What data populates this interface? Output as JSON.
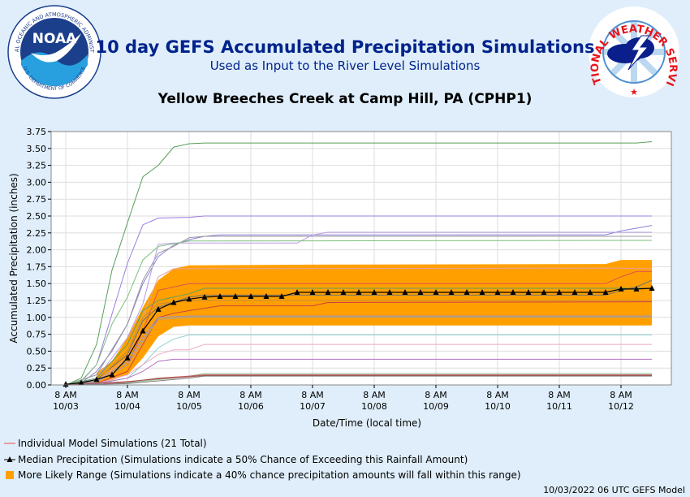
{
  "header": {
    "title": "10 day GEFS Accumulated Precipitation Simulations",
    "subtitle": "Used as Input to the River Level Simulations",
    "noaa_text": "NOAA",
    "noaa_ring_text": "NATIONAL OCEANIC AND ATMOSPHERIC ADMINISTRATION",
    "noaa_ring_text_bottom": "U.S. DEPARTMENT OF COMMERCE",
    "nws_ring_text": "NATIONAL WEATHER SERVICE"
  },
  "footer": "10/03/2022 06 UTC GEFS Model",
  "colors": {
    "band": "#ffa000",
    "median": "#000000",
    "title": "#00238c",
    "background": "#dfeefa"
  },
  "chart_data": {
    "type": "line",
    "title": "Yellow Breeches Creek at Camp Hill, PA (CPHP1)",
    "xlabel": "Date/Time (local time)",
    "ylabel": "Accumulated Precipitation (inches)",
    "ylim": [
      0,
      3.75
    ],
    "xlim_hours": [
      0,
      228
    ],
    "yticks": [
      "0.00",
      "0.25",
      "0.50",
      "0.75",
      "1.00",
      "1.25",
      "1.50",
      "1.75",
      "2.00",
      "2.25",
      "2.50",
      "2.75",
      "3.00",
      "3.25",
      "3.50",
      "3.75"
    ],
    "xticks": [
      {
        "line1": "8 AM",
        "line2": "10/03",
        "hour": 0
      },
      {
        "line1": "8 AM",
        "line2": "10/04",
        "hour": 24
      },
      {
        "line1": "8 AM",
        "line2": "10/05",
        "hour": 48
      },
      {
        "line1": "8 AM",
        "line2": "10/06",
        "hour": 72
      },
      {
        "line1": "8 AM",
        "line2": "10/07",
        "hour": 96
      },
      {
        "line1": "8 AM",
        "line2": "10/08",
        "hour": 120
      },
      {
        "line1": "8 AM",
        "line2": "10/09",
        "hour": 144
      },
      {
        "line1": "8 AM",
        "line2": "10/10",
        "hour": 168
      },
      {
        "line1": "8 AM",
        "line2": "10/11",
        "hour": 192
      },
      {
        "line1": "8 AM",
        "line2": "10/12",
        "hour": 216
      }
    ],
    "grid": true,
    "legend": [
      {
        "key": "members",
        "label": "Individual Model Simulations (21 Total)"
      },
      {
        "key": "median",
        "label": "Median Precipitation (Simulations indicate a 50% Chance of Exceeding this Rainfall Amount)"
      },
      {
        "key": "band",
        "label": "More Likely Range (Simulations indicate a 40% chance precipitation amounts will fall within this range)"
      }
    ],
    "median": [
      [
        0,
        0.01
      ],
      [
        6,
        0.03
      ],
      [
        12,
        0.08
      ],
      [
        18,
        0.15
      ],
      [
        24,
        0.4
      ],
      [
        30,
        0.8
      ],
      [
        36,
        1.12
      ],
      [
        42,
        1.22
      ],
      [
        48,
        1.27
      ],
      [
        54,
        1.3
      ],
      [
        60,
        1.31
      ],
      [
        66,
        1.31
      ],
      [
        72,
        1.31
      ],
      [
        78,
        1.31
      ],
      [
        84,
        1.31
      ],
      [
        90,
        1.37
      ],
      [
        96,
        1.37
      ],
      [
        102,
        1.37
      ],
      [
        108,
        1.37
      ],
      [
        114,
        1.37
      ],
      [
        120,
        1.37
      ],
      [
        126,
        1.37
      ],
      [
        132,
        1.37
      ],
      [
        138,
        1.37
      ],
      [
        144,
        1.37
      ],
      [
        150,
        1.37
      ],
      [
        156,
        1.37
      ],
      [
        162,
        1.37
      ],
      [
        168,
        1.37
      ],
      [
        174,
        1.37
      ],
      [
        180,
        1.37
      ],
      [
        186,
        1.37
      ],
      [
        192,
        1.37
      ],
      [
        198,
        1.37
      ],
      [
        204,
        1.37
      ],
      [
        210,
        1.37
      ],
      [
        216,
        1.42
      ],
      [
        222,
        1.42
      ],
      [
        228,
        1.43
      ]
    ],
    "band_upper": [
      [
        12,
        0.18
      ],
      [
        18,
        0.35
      ],
      [
        24,
        0.7
      ],
      [
        30,
        1.15
      ],
      [
        36,
        1.55
      ],
      [
        42,
        1.72
      ],
      [
        48,
        1.77
      ],
      [
        96,
        1.78
      ],
      [
        210,
        1.79
      ],
      [
        216,
        1.85
      ],
      [
        228,
        1.85
      ]
    ],
    "band_lower": [
      [
        12,
        0.02
      ],
      [
        18,
        0.07
      ],
      [
        24,
        0.15
      ],
      [
        30,
        0.4
      ],
      [
        36,
        0.72
      ],
      [
        42,
        0.86
      ],
      [
        48,
        0.88
      ],
      [
        228,
        0.88
      ]
    ],
    "members": [
      {
        "color": "#5aa05a",
        "points": [
          [
            0,
            0
          ],
          [
            6,
            0.1
          ],
          [
            12,
            0.6
          ],
          [
            18,
            1.7
          ],
          [
            24,
            2.4
          ],
          [
            30,
            3.08
          ],
          [
            36,
            3.25
          ],
          [
            42,
            3.52
          ],
          [
            48,
            3.57
          ],
          [
            54,
            3.58
          ],
          [
            222,
            3.58
          ],
          [
            228,
            3.6
          ]
        ]
      },
      {
        "color": "#9b7de0",
        "points": [
          [
            0,
            0
          ],
          [
            6,
            0.05
          ],
          [
            12,
            0.3
          ],
          [
            18,
            1.05
          ],
          [
            24,
            1.8
          ],
          [
            30,
            2.37
          ],
          [
            36,
            2.47
          ],
          [
            48,
            2.48
          ],
          [
            54,
            2.5
          ],
          [
            228,
            2.5
          ]
        ]
      },
      {
        "color": "#8a7fd8",
        "points": [
          [
            0,
            0
          ],
          [
            6,
            0.03
          ],
          [
            12,
            0.2
          ],
          [
            18,
            0.5
          ],
          [
            24,
            0.9
          ],
          [
            30,
            1.5
          ],
          [
            36,
            1.9
          ],
          [
            42,
            2.07
          ],
          [
            48,
            2.15
          ],
          [
            54,
            2.2
          ],
          [
            60,
            2.22
          ],
          [
            210,
            2.22
          ],
          [
            216,
            2.28
          ],
          [
            222,
            2.32
          ],
          [
            228,
            2.36
          ]
        ]
      },
      {
        "color": "#999999",
        "points": [
          [
            0,
            0
          ],
          [
            12,
            0.15
          ],
          [
            24,
            0.9
          ],
          [
            30,
            1.55
          ],
          [
            36,
            1.95
          ],
          [
            42,
            2.05
          ],
          [
            48,
            2.18
          ],
          [
            54,
            2.2
          ],
          [
            228,
            2.2
          ]
        ]
      },
      {
        "color": "#b89be6",
        "points": [
          [
            0,
            0
          ],
          [
            12,
            0.1
          ],
          [
            24,
            0.7
          ],
          [
            30,
            1.2
          ],
          [
            36,
            2.08
          ],
          [
            42,
            2.1
          ],
          [
            72,
            2.1
          ],
          [
            84,
            2.1
          ],
          [
            90,
            2.1
          ],
          [
            96,
            2.22
          ],
          [
            102,
            2.26
          ],
          [
            228,
            2.26
          ]
        ]
      },
      {
        "color": "#7bbf7b",
        "points": [
          [
            0,
            0
          ],
          [
            6,
            0.06
          ],
          [
            12,
            0.3
          ],
          [
            18,
            0.9
          ],
          [
            24,
            1.3
          ],
          [
            30,
            1.85
          ],
          [
            36,
            2.05
          ],
          [
            48,
            2.13
          ],
          [
            228,
            2.14
          ]
        ]
      },
      {
        "color": "#e9a0a0",
        "points": [
          [
            0,
            0
          ],
          [
            12,
            0.05
          ],
          [
            24,
            0.4
          ],
          [
            30,
            1.0
          ],
          [
            36,
            1.6
          ],
          [
            42,
            1.72
          ],
          [
            216,
            1.73
          ],
          [
            222,
            1.72
          ],
          [
            228,
            1.72
          ]
        ]
      },
      {
        "color": "#e05050",
        "points": [
          [
            0,
            0
          ],
          [
            12,
            0.04
          ],
          [
            24,
            0.3
          ],
          [
            30,
            0.8
          ],
          [
            36,
            1.4
          ],
          [
            48,
            1.5
          ],
          [
            210,
            1.5
          ],
          [
            216,
            1.6
          ],
          [
            222,
            1.68
          ],
          [
            228,
            1.68
          ]
        ]
      },
      {
        "color": "#60a060",
        "points": [
          [
            0,
            0
          ],
          [
            12,
            0.1
          ],
          [
            24,
            0.6
          ],
          [
            30,
            1.1
          ],
          [
            36,
            1.25
          ],
          [
            48,
            1.35
          ],
          [
            54,
            1.43
          ],
          [
            228,
            1.43
          ]
        ]
      },
      {
        "color": "#707070",
        "points": [
          [
            0,
            0
          ],
          [
            12,
            0.08
          ],
          [
            24,
            0.45
          ],
          [
            30,
            0.95
          ],
          [
            36,
            1.15
          ],
          [
            48,
            1.3
          ],
          [
            54,
            1.33
          ],
          [
            210,
            1.33
          ],
          [
            216,
            1.4
          ],
          [
            222,
            1.45
          ],
          [
            228,
            1.55
          ]
        ]
      },
      {
        "color": "#c98a3a",
        "points": [
          [
            0,
            0
          ],
          [
            12,
            0.06
          ],
          [
            24,
            0.5
          ],
          [
            30,
            1.0
          ],
          [
            36,
            1.2
          ],
          [
            48,
            1.25
          ],
          [
            228,
            1.25
          ]
        ]
      },
      {
        "color": "#d04040",
        "points": [
          [
            0,
            0
          ],
          [
            12,
            0.02
          ],
          [
            24,
            0.2
          ],
          [
            30,
            0.6
          ],
          [
            36,
            1.0
          ],
          [
            42,
            1.06
          ],
          [
            48,
            1.1
          ],
          [
            60,
            1.17
          ],
          [
            96,
            1.17
          ],
          [
            102,
            1.22
          ],
          [
            228,
            1.23
          ]
        ]
      },
      {
        "color": "#9090d0",
        "points": [
          [
            0,
            0
          ],
          [
            12,
            0.05
          ],
          [
            24,
            0.35
          ],
          [
            30,
            0.7
          ],
          [
            36,
            1.0
          ],
          [
            48,
            1.02
          ],
          [
            228,
            1.02
          ]
        ]
      },
      {
        "color": "#a0a0a0",
        "points": [
          [
            0,
            0
          ],
          [
            12,
            0.04
          ],
          [
            24,
            0.3
          ],
          [
            30,
            0.65
          ],
          [
            36,
            0.97
          ],
          [
            48,
            1.0
          ],
          [
            228,
            1.0
          ]
        ]
      },
      {
        "color": "#8fd0d0",
        "points": [
          [
            0,
            0
          ],
          [
            12,
            0.02
          ],
          [
            24,
            0.1
          ],
          [
            30,
            0.3
          ],
          [
            36,
            0.55
          ],
          [
            42,
            0.68
          ],
          [
            48,
            0.74
          ],
          [
            228,
            0.74
          ]
        ]
      },
      {
        "color": "#f0a8c8",
        "points": [
          [
            0,
            0
          ],
          [
            12,
            0.02
          ],
          [
            24,
            0.15
          ],
          [
            30,
            0.3
          ],
          [
            36,
            0.45
          ],
          [
            42,
            0.52
          ],
          [
            48,
            0.52
          ],
          [
            54,
            0.6
          ],
          [
            228,
            0.6
          ]
        ]
      },
      {
        "color": "#b070c0",
        "points": [
          [
            0,
            0
          ],
          [
            12,
            0.02
          ],
          [
            24,
            0.1
          ],
          [
            30,
            0.2
          ],
          [
            36,
            0.35
          ],
          [
            42,
            0.38
          ],
          [
            228,
            0.38
          ]
        ]
      },
      {
        "color": "#90c090",
        "points": [
          [
            0,
            0
          ],
          [
            12,
            0.01
          ],
          [
            24,
            0.03
          ],
          [
            36,
            0.08
          ],
          [
            42,
            0.1
          ],
          [
            48,
            0.13
          ],
          [
            54,
            0.17
          ],
          [
            228,
            0.17
          ]
        ]
      },
      {
        "color": "#c06060",
        "points": [
          [
            0,
            0
          ],
          [
            12,
            0.01
          ],
          [
            24,
            0.04
          ],
          [
            36,
            0.1
          ],
          [
            48,
            0.13
          ],
          [
            54,
            0.15
          ],
          [
            228,
            0.15
          ]
        ]
      },
      {
        "color": "#808080",
        "points": [
          [
            0,
            0
          ],
          [
            24,
            0.02
          ],
          [
            36,
            0.06
          ],
          [
            48,
            0.1
          ],
          [
            54,
            0.13
          ],
          [
            228,
            0.13
          ]
        ]
      },
      {
        "color": "#a05050",
        "points": [
          [
            0,
            0
          ],
          [
            24,
            0.05
          ],
          [
            36,
            0.09
          ],
          [
            48,
            0.12
          ],
          [
            54,
            0.14
          ],
          [
            228,
            0.14
          ]
        ]
      }
    ]
  }
}
